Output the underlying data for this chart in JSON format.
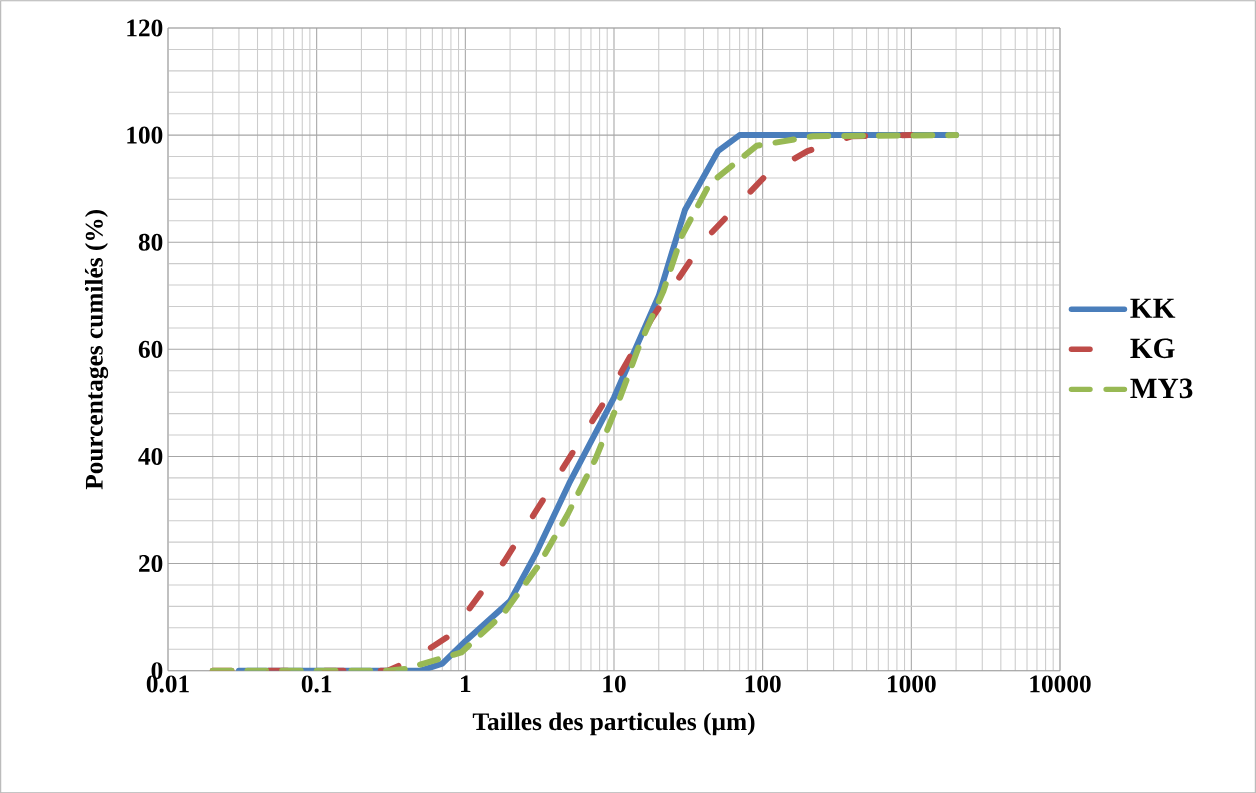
{
  "chart_data": {
    "type": "line",
    "xlabel": "Tailles des particules (µm)",
    "ylabel": "Pourcentages cumilés (%)",
    "log": "x",
    "xlim": [
      0.01,
      10000
    ],
    "ylim": [
      0,
      120
    ],
    "xticks": [
      0.01,
      0.1,
      1,
      10,
      100,
      1000,
      10000
    ],
    "yticks": [
      0,
      20,
      40,
      60,
      80,
      100,
      120
    ],
    "grid": true,
    "legend": "right",
    "marker": "none",
    "series": [
      {
        "name": "KK",
        "color": "#4a7ebb",
        "line_style": "solid",
        "x": [
          0.03,
          0.5,
          0.7,
          1,
          2,
          3,
          5,
          10,
          20,
          30,
          50,
          70,
          2000
        ],
        "values": [
          0,
          0,
          1.3,
          5.5,
          13,
          22,
          35,
          51,
          70,
          86,
          97,
          100,
          100
        ]
      },
      {
        "name": "KG",
        "color": "#be4b48",
        "line_style": "dashdot",
        "x": [
          0.02,
          0.3,
          0.43,
          0.78,
          1.84,
          4,
          8.7,
          17.9,
          40,
          107,
          200,
          400,
          1000
        ],
        "values": [
          0,
          0,
          1.9,
          6.5,
          20.5,
          35.4,
          50.4,
          65.7,
          80.2,
          92.7,
          97,
          99.8,
          100
        ]
      },
      {
        "name": "MY3",
        "color": "#98b954",
        "line_style": "dashed",
        "x": [
          0.02,
          0.3,
          0.39,
          0.94,
          1.8,
          3.1,
          4.9,
          7.5,
          10.6,
          14.6,
          21.5,
          28.6,
          44,
          91,
          218,
          2000
        ],
        "values": [
          0,
          0,
          0.3,
          3.4,
          10.6,
          19.6,
          29.3,
          39.5,
          49.8,
          60.3,
          70.9,
          81.2,
          90.9,
          98,
          99.8,
          100
        ]
      }
    ]
  }
}
